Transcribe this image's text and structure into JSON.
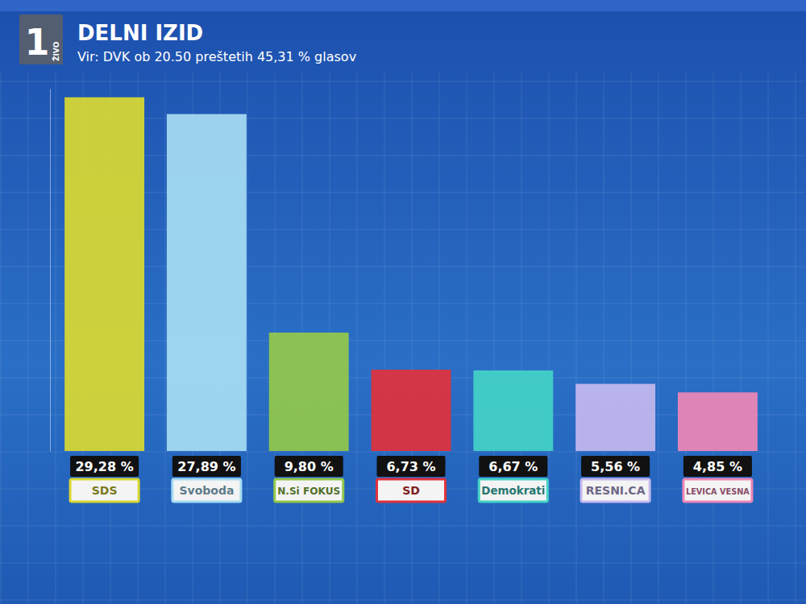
{
  "chart_data": {
    "type": "bar",
    "title": "DELNI IZID",
    "subtitle": "Vir: DVK ob 20.50 preštetih 45,31 % glasov",
    "annotations": [
      "1",
      "ŽIVO"
    ],
    "categories": [
      "SDS",
      "Svoboda",
      "N.Si FOKUS",
      "SD",
      "Demokrati",
      "RESNI.CA",
      "LEVICA VESNA"
    ],
    "values": [
      29.28,
      27.89,
      9.8,
      6.73,
      6.67,
      5.56,
      4.85
    ],
    "value_labels": [
      "29,28 %",
      "27,89 %",
      "9,80 %",
      "6,73 %",
      "6,67 %",
      "5,56 %",
      "4,85 %"
    ],
    "colors": [
      "#d8d832",
      "#a6dcf2",
      "#92c84a",
      "#e0323c",
      "#44d2c6",
      "#c4b8ee",
      "#ee86b6"
    ],
    "ylim": [
      0,
      30
    ],
    "data_labels": true,
    "tick_labels": false
  }
}
